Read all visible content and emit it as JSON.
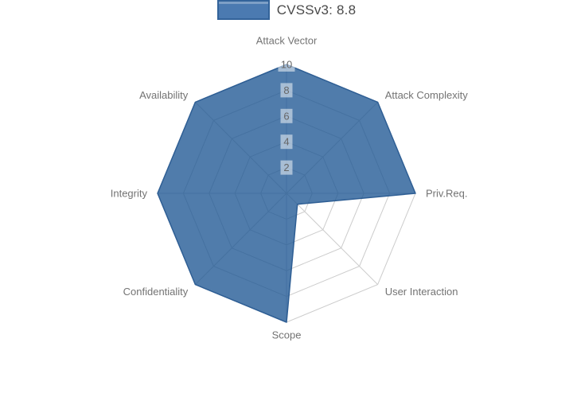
{
  "legend": {
    "label": "CVSSv3: 8.8",
    "swatch_color": "#4b7ab1",
    "swatch_border": "#33639a"
  },
  "chart_data": {
    "type": "radar",
    "title": "CVSSv3: 8.8",
    "categories": [
      "Attack Vector",
      "Attack Complexity",
      "Priv.Req.",
      "User Interaction",
      "Scope",
      "Confidentiality",
      "Integrity",
      "Availability"
    ],
    "series": [
      {
        "name": "CVSSv3: 8.8",
        "values": [
          10,
          10,
          10,
          1.2,
          10,
          10,
          10,
          10
        ]
      }
    ],
    "radial_ticks": [
      2,
      4,
      6,
      8,
      10
    ],
    "range": [
      0,
      10
    ],
    "grid": true,
    "legend_position": "top-center",
    "start_axis": "top",
    "direction": "clockwise",
    "colors": {
      "fill": "rgba(31,87,148,0.78)",
      "stroke": "#2e5e94",
      "grid": "#cccccc",
      "axis_label": "#737373",
      "tick_label": "#666666",
      "tick_background": "rgba(255,255,255,0.5)"
    }
  }
}
